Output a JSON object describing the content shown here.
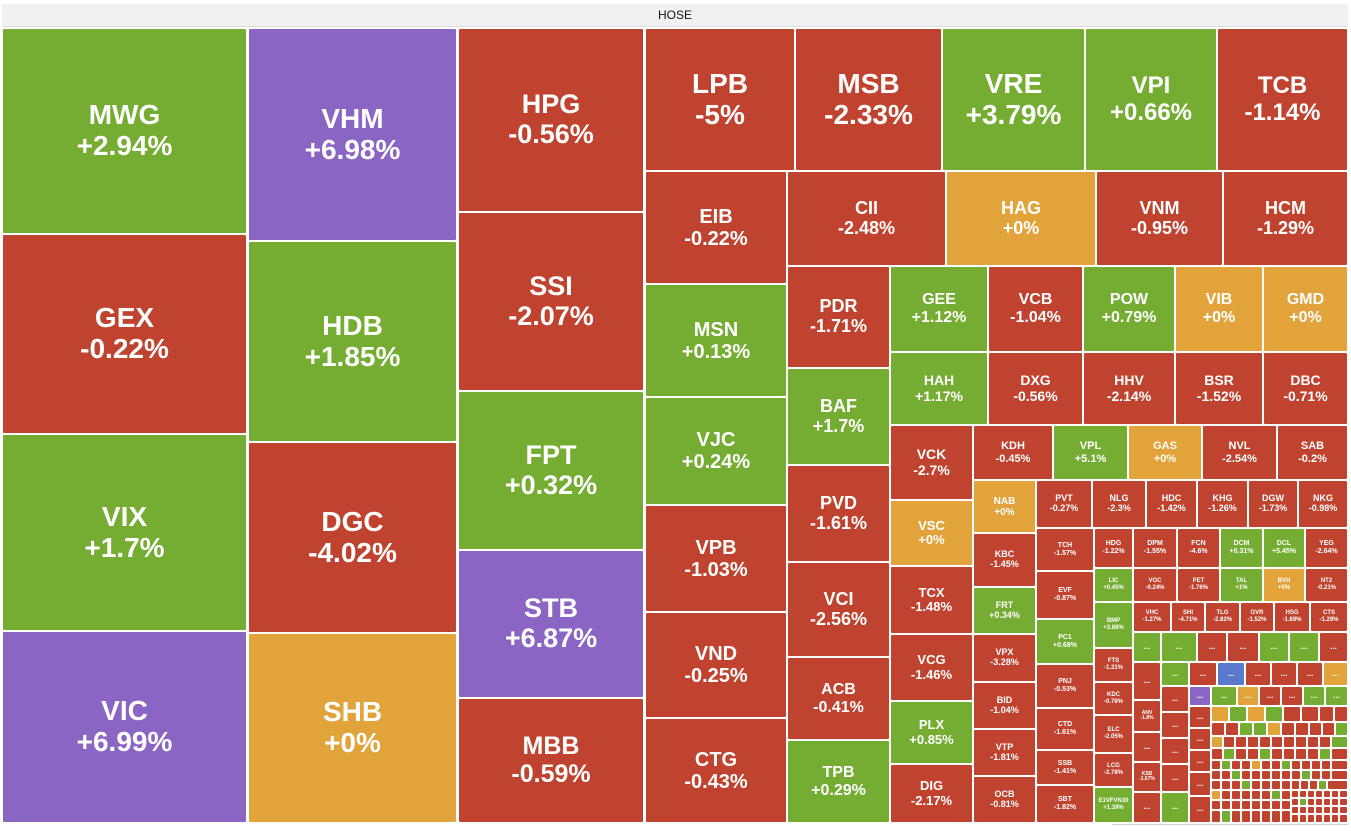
{
  "title": "HOSE",
  "colors": {
    "up": "#74ad31",
    "down": "#c0432f",
    "flat": "#e2a33a",
    "ceiling": "#8b65c4",
    "floor": "#5b79cc"
  },
  "chart_data": {
    "type": "treemap",
    "exchange": "HOSE",
    "tiles": [
      {
        "s": "MWG",
        "v": "+2.94%"
      },
      {
        "s": "GEX",
        "v": "-0.22%"
      },
      {
        "s": "VIX",
        "v": "+1.7%"
      },
      {
        "s": "VIC",
        "v": "+6.99%"
      },
      {
        "s": "VHM",
        "v": "+6.98%"
      },
      {
        "s": "HDB",
        "v": "+1.85%"
      },
      {
        "s": "DGC",
        "v": "-4.02%"
      },
      {
        "s": "SHB",
        "v": "+0%"
      },
      {
        "s": "HPG",
        "v": "-0.56%"
      },
      {
        "s": "SSI",
        "v": "-2.07%"
      },
      {
        "s": "FPT",
        "v": "+0.32%"
      },
      {
        "s": "STB",
        "v": "+6.87%"
      },
      {
        "s": "MBB",
        "v": "-0.59%"
      },
      {
        "s": "LPB",
        "v": "-5%"
      },
      {
        "s": "EIB",
        "v": "-0.22%"
      },
      {
        "s": "MSN",
        "v": "+0.13%"
      },
      {
        "s": "VJC",
        "v": "+0.24%"
      },
      {
        "s": "VPB",
        "v": "-1.03%"
      },
      {
        "s": "VND",
        "v": "-0.25%"
      },
      {
        "s": "CTG",
        "v": "-0.43%"
      },
      {
        "s": "MSB",
        "v": "-2.33%"
      },
      {
        "s": "VRE",
        "v": "+3.79%"
      },
      {
        "s": "VPI",
        "v": "+0.66%"
      },
      {
        "s": "TCB",
        "v": "-1.14%"
      },
      {
        "s": "CII",
        "v": "-2.48%"
      },
      {
        "s": "HAG",
        "v": "+0%"
      },
      {
        "s": "VNM",
        "v": "-0.95%"
      },
      {
        "s": "HCM",
        "v": "-1.29%"
      },
      {
        "s": "PDR",
        "v": "-1.71%"
      },
      {
        "s": "BAF",
        "v": "+1.7%"
      },
      {
        "s": "PVD",
        "v": "-1.61%"
      },
      {
        "s": "VCI",
        "v": "-2.56%"
      },
      {
        "s": "ACB",
        "v": "-0.41%"
      },
      {
        "s": "TPB",
        "v": "+0.29%"
      },
      {
        "s": "GEE",
        "v": "+1.12%"
      },
      {
        "s": "VCB",
        "v": "-1.04%"
      },
      {
        "s": "POW",
        "v": "+0.79%"
      },
      {
        "s": "VIB",
        "v": "+0%"
      },
      {
        "s": "GMD",
        "v": "+0%"
      },
      {
        "s": "HAH",
        "v": "+1.17%"
      },
      {
        "s": "DXG",
        "v": "-0.56%"
      },
      {
        "s": "HHV",
        "v": "-2.14%"
      },
      {
        "s": "BSR",
        "v": "-1.52%"
      },
      {
        "s": "DBC",
        "v": "-0.71%"
      },
      {
        "s": "VCK",
        "v": "-2.7%"
      },
      {
        "s": "VSC",
        "v": "+0%"
      },
      {
        "s": "TCX",
        "v": "-1.48%"
      },
      {
        "s": "VCG",
        "v": "-1.46%"
      },
      {
        "s": "PLX",
        "v": "+0.85%"
      },
      {
        "s": "DIG",
        "v": "-2.17%"
      },
      {
        "s": "KDH",
        "v": "-0.45%"
      },
      {
        "s": "VPL",
        "v": "+5.1%"
      },
      {
        "s": "GAS",
        "v": "+0%"
      },
      {
        "s": "NVL",
        "v": "-2.54%"
      },
      {
        "s": "SAB",
        "v": "-0.2%"
      },
      {
        "s": "NAB",
        "v": "+0%"
      },
      {
        "s": "KBC",
        "v": "-1.45%"
      },
      {
        "s": "FRT",
        "v": "+0.34%"
      },
      {
        "s": "VPX",
        "v": "-3.28%"
      },
      {
        "s": "BID",
        "v": "-1.04%"
      },
      {
        "s": "VTP",
        "v": "-1.81%"
      },
      {
        "s": "OCB",
        "v": "-0.81%"
      },
      {
        "s": "PVT",
        "v": "-0.27%"
      },
      {
        "s": "NLG",
        "v": "-2.3%"
      },
      {
        "s": "HDC",
        "v": "-1.42%"
      },
      {
        "s": "KHG",
        "v": "-1.26%"
      },
      {
        "s": "DGW",
        "v": "-1.73%"
      },
      {
        "s": "NKG",
        "v": "-0.98%"
      },
      {
        "s": "TCH",
        "v": "-1.57%"
      },
      {
        "s": "EVF",
        "v": "-0.87%"
      },
      {
        "s": "PC1",
        "v": "+0.68%"
      },
      {
        "s": "PNJ",
        "v": "-0.53%"
      },
      {
        "s": "CTD",
        "v": "-1.61%"
      },
      {
        "s": "SSB",
        "v": "-1.41%"
      },
      {
        "s": "SBT",
        "v": "-1.82%"
      },
      {
        "s": "HDG",
        "v": "-1.22%"
      },
      {
        "s": "DPM",
        "v": "-1.55%"
      },
      {
        "s": "FCN",
        "v": "-4.6%"
      },
      {
        "s": "DCM",
        "v": "+0.31%"
      },
      {
        "s": "DCL",
        "v": "+5.45%"
      },
      {
        "s": "YEG",
        "v": "-2.64%"
      },
      {
        "s": "LIC",
        "v": "+0.45%"
      },
      {
        "s": "VGC",
        "v": "-0.24%"
      },
      {
        "s": "PET",
        "v": "-1.76%"
      },
      {
        "s": "TAL",
        "v": "+1%"
      },
      {
        "s": "BVH",
        "v": "+0%"
      },
      {
        "s": "NT2",
        "v": "-0.21%"
      },
      {
        "s": "BMP",
        "v": "+3.86%"
      },
      {
        "s": "VHC",
        "v": "-1.27%"
      },
      {
        "s": "SHI",
        "v": "-4.71%"
      },
      {
        "s": "TLG",
        "v": "-2.82%"
      },
      {
        "s": "GVR",
        "v": "-1.52%"
      },
      {
        "s": "HSG",
        "v": "-1.69%"
      },
      {
        "s": "CTS",
        "v": "-1.29%"
      },
      {
        "s": "FTS",
        "v": "-1.31%"
      },
      {
        "s": "KDC",
        "v": "-0.76%"
      },
      {
        "s": "ELC",
        "v": "-2.05%"
      },
      {
        "s": "LCG",
        "v": "-2.78%"
      },
      {
        "s": "E1VFVN30",
        "v": "+1.39%"
      },
      {
        "s": "ANV",
        "v": "-1.8%"
      },
      {
        "s": "KSB",
        "v": "-1.67%"
      }
    ],
    "unlabeled_marker": "..."
  }
}
